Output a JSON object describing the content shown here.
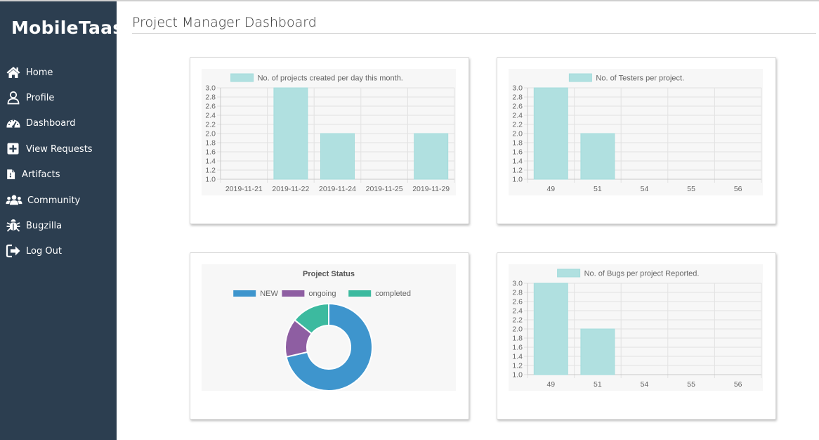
{
  "app": {
    "name": "MobileTaas"
  },
  "page": {
    "title": "Project Manager Dashboard"
  },
  "nav": [
    {
      "label": "Home",
      "icon": "home-icon"
    },
    {
      "label": "Profile",
      "icon": "user-icon"
    },
    {
      "label": "Dashboard",
      "icon": "dashboard-gauge-icon"
    },
    {
      "label": "View Requests",
      "icon": "plus-square-icon"
    },
    {
      "label": "Artifacts",
      "icon": "file-icon"
    },
    {
      "label": "Community",
      "icon": "users-icon"
    },
    {
      "label": "Bugzilla",
      "icon": "bug-icon"
    },
    {
      "label": "Log Out",
      "icon": "sign-out-icon"
    }
  ],
  "colors": {
    "sidebar": "#2c3e50",
    "bar_fill": "#b0e0e0",
    "bar_stroke": "#a4dcdc",
    "new": "#3e95cd",
    "ongoing": "#8e5ea2",
    "completed": "#3cba9f"
  },
  "chart_data": [
    {
      "id": "projects-per-day",
      "type": "bar",
      "legend": "No. of projects created per day this month.",
      "categories": [
        "2019-11-21",
        "2019-11-22",
        "2019-11-24",
        "2019-11-25",
        "2019-11-29"
      ],
      "values": [
        1,
        3,
        2,
        1,
        2
      ],
      "ylim": [
        1.0,
        3.0
      ],
      "yticks": [
        "3.0",
        "2.8",
        "2.6",
        "2.4",
        "2.2",
        "2.0",
        "1.8",
        "1.6",
        "1.4",
        "1.2",
        "1.0"
      ]
    },
    {
      "id": "testers-per-project",
      "type": "bar",
      "legend": "No. of Testers per project.",
      "categories": [
        "49",
        "51",
        "54",
        "55",
        "56"
      ],
      "values": [
        3,
        2,
        1,
        1,
        1
      ],
      "ylim": [
        1.0,
        3.0
      ],
      "yticks": [
        "3.0",
        "2.8",
        "2.6",
        "2.4",
        "2.2",
        "2.0",
        "1.8",
        "1.6",
        "1.4",
        "1.2",
        "1.0"
      ]
    },
    {
      "id": "project-status",
      "type": "pie",
      "title": "Project Status",
      "labels": [
        "NEW",
        "ongoing",
        "completed"
      ],
      "values": [
        10,
        2,
        2
      ]
    },
    {
      "id": "bugs-per-project",
      "type": "bar",
      "legend": "No. of Bugs per project Reported.",
      "categories": [
        "49",
        "51",
        "54",
        "55",
        "56"
      ],
      "values": [
        3,
        2,
        1,
        1,
        1
      ],
      "ylim": [
        1.0,
        3.0
      ],
      "yticks": [
        "3.0",
        "2.8",
        "2.6",
        "2.4",
        "2.2",
        "2.0",
        "1.8",
        "1.6",
        "1.4",
        "1.2",
        "1.0"
      ]
    }
  ]
}
